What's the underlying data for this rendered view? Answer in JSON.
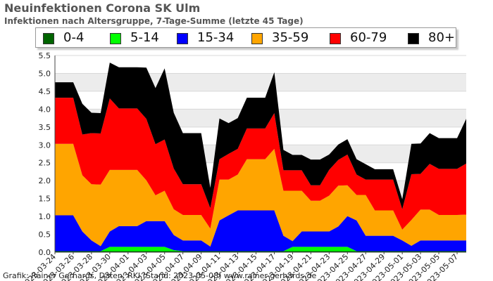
{
  "title": "Neuinfektionen Corona SK Ulm",
  "subtitle": "Infektionen nach Altersgruppe, 7-Tage-Summe (letzte 45 Tage)",
  "credit": "Grafik: Rainer Gerhards, Daten: RKI (Stand: 2023-05-08) www.rainer-gerhards.de",
  "chart_data": {
    "type": "area",
    "stacked": true,
    "title": "Neuinfektionen Corona SK Ulm",
    "subtitle": "Infektionen nach Altersgruppe, 7-Tage-Summe (letzte 45 Tage)",
    "xlabel": "",
    "ylabel": "",
    "ylim": [
      0,
      5.5
    ],
    "yticks": [
      "0.0",
      "0.5",
      "1.0",
      "1.5",
      "2.0",
      "2.5",
      "3.0",
      "3.5",
      "4.0",
      "4.5",
      "5.0",
      "5.5"
    ],
    "grid": "horizontal bands",
    "legend_position": "top",
    "x": [
      "2023-03-24",
      "2023-03-25",
      "2023-03-26",
      "2023-03-27",
      "2023-03-28",
      "2023-03-29",
      "2023-03-30",
      "2023-03-31",
      "2023-04-01",
      "2023-04-02",
      "2023-04-03",
      "2023-04-04",
      "2023-04-05",
      "2023-04-06",
      "2023-04-07",
      "2023-04-08",
      "2023-04-09",
      "2023-04-10",
      "2023-04-11",
      "2023-04-12",
      "2023-04-13",
      "2023-04-14",
      "2023-04-15",
      "2023-04-16",
      "2023-04-17",
      "2023-04-18",
      "2023-04-19",
      "2023-04-20",
      "2023-04-21",
      "2023-04-22",
      "2023-04-23",
      "2023-04-24",
      "2023-04-25",
      "2023-04-26",
      "2023-04-27",
      "2023-04-28",
      "2023-04-29",
      "2023-04-30",
      "2023-05-01",
      "2023-05-02",
      "2023-05-03",
      "2023-05-04",
      "2023-05-05",
      "2023-05-06",
      "2023-05-07",
      "2023-05-08"
    ],
    "tick_labels": [
      "2023-03-24",
      "2023-03-26",
      "2023-03-28",
      "2023-03-30",
      "2023-04-01",
      "2023-04-03",
      "2023-04-05",
      "2023-04-07",
      "2023-04-09",
      "2023-04-11",
      "2023-04-13",
      "2023-04-15",
      "2023-04-17",
      "2023-04-19",
      "2023-04-21",
      "2023-04-23",
      "2023-04-25",
      "2023-04-27",
      "2023-04-29",
      "2023-05-01",
      "2023-05-03",
      "2023-05-05",
      "2023-05-07"
    ],
    "series": [
      {
        "name": "0-4",
        "color": "#006400",
        "values": [
          0.03,
          0.03,
          0.03,
          0.03,
          0.03,
          0.03,
          0.03,
          0.03,
          0.03,
          0.03,
          0.03,
          0.03,
          0.03,
          0.03,
          0.03,
          0.03,
          0.03,
          0.03,
          0.03,
          0.03,
          0.03,
          0.03,
          0.03,
          0.03,
          0.03,
          0.03,
          0.03,
          0.03,
          0.03,
          0.03,
          0.03,
          0.03,
          0.03,
          0.03,
          0.03,
          0.03,
          0.03,
          0.03,
          0.03,
          0.03,
          0.03,
          0.03,
          0.03,
          0.03,
          0.03,
          0.03
        ]
      },
      {
        "name": "5-14",
        "color": "#00ff00",
        "values": [
          0,
          0,
          0,
          0,
          0,
          0,
          0.12,
          0.12,
          0.12,
          0.12,
          0.12,
          0.12,
          0.12,
          0.03,
          0,
          0,
          0,
          0,
          0,
          0,
          0,
          0,
          0,
          0,
          0,
          0,
          0.12,
          0.12,
          0.12,
          0.12,
          0.12,
          0.12,
          0.12,
          0,
          0,
          0,
          0,
          0,
          0,
          0,
          0,
          0,
          0,
          0,
          0,
          0
        ]
      },
      {
        "name": "15-34",
        "color": "#0000ff",
        "values": [
          1.0,
          1.0,
          1.0,
          0.55,
          0.3,
          0.14,
          0.43,
          0.58,
          0.58,
          0.58,
          0.72,
          0.72,
          0.72,
          0.42,
          0.3,
          0.3,
          0.3,
          0.13,
          0.86,
          1.0,
          1.14,
          1.14,
          1.14,
          1.14,
          1.14,
          0.43,
          0.16,
          0.43,
          0.43,
          0.43,
          0.43,
          0.57,
          0.86,
          0.86,
          0.43,
          0.43,
          0.43,
          0.43,
          0.3,
          0.15,
          0.3,
          0.3,
          0.3,
          0.3,
          0.3,
          0.3
        ]
      },
      {
        "name": "35-59",
        "color": "#ffa500",
        "values": [
          2.0,
          2.0,
          2.0,
          1.57,
          1.57,
          1.72,
          1.72,
          1.57,
          1.57,
          1.57,
          1.14,
          0.72,
          0.85,
          0.72,
          0.71,
          0.71,
          0.71,
          0.5,
          1.14,
          1.0,
          1.0,
          1.43,
          1.43,
          1.43,
          1.72,
          1.26,
          1.41,
          1.14,
          0.86,
          0.86,
          1.0,
          1.14,
          0.86,
          0.71,
          1.14,
          0.71,
          0.71,
          0.71,
          0.3,
          0.72,
          0.86,
          0.86,
          0.71,
          0.71,
          0.71,
          0.72
        ]
      },
      {
        "name": "60-79",
        "color": "#ff0000",
        "values": [
          1.29,
          1.29,
          1.29,
          1.14,
          1.43,
          1.43,
          2.0,
          1.72,
          1.72,
          1.72,
          1.72,
          1.43,
          1.43,
          1.14,
          0.86,
          0.86,
          0.86,
          0.57,
          0.57,
          0.72,
          0.72,
          0.86,
          0.86,
          0.86,
          1.0,
          0.57,
          0.57,
          0.57,
          0.43,
          0.43,
          0.72,
          0.72,
          0.86,
          0.57,
          0.43,
          0.86,
          0.86,
          0.86,
          0.57,
          1.28,
          1.0,
          1.28,
          1.29,
          1.29,
          1.29,
          1.43
        ]
      },
      {
        "name": "80+",
        "color": "#000000",
        "values": [
          0.43,
          0.43,
          0.43,
          0.86,
          0.57,
          0.57,
          1.0,
          1.15,
          1.15,
          1.15,
          1.43,
          1.57,
          1.99,
          1.56,
          1.43,
          1.43,
          1.43,
          0.57,
          1.14,
          0.86,
          0.86,
          0.86,
          0.86,
          0.86,
          1.14,
          0.57,
          0.43,
          0.43,
          0.72,
          0.72,
          0.43,
          0.43,
          0.43,
          0.43,
          0.43,
          0.29,
          0.29,
          0.29,
          0.28,
          0.85,
          0.85,
          0.86,
          0.86,
          0.86,
          0.86,
          1.25
        ]
      }
    ]
  }
}
